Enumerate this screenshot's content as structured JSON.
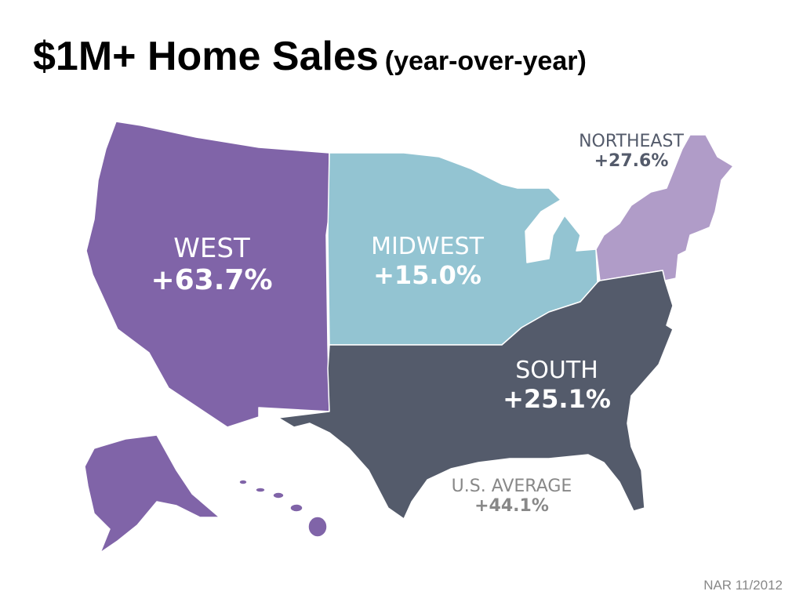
{
  "title": {
    "main": "$1M+ Home Sales",
    "sub": "(year-over-year)"
  },
  "regions": {
    "west": {
      "name": "WEST",
      "value": "+63.7%",
      "color": "#8064a8"
    },
    "midwest": {
      "name": "MIDWEST",
      "value": "+15.0%",
      "color": "#93c4d2"
    },
    "northeast": {
      "name": "NORTHEAST",
      "value": "+27.6%",
      "color": "#b09cc8"
    },
    "south": {
      "name": "SOUTH",
      "value": "+25.1%",
      "color": "#545b6b"
    }
  },
  "us_average": {
    "name": "U.S. AVERAGE",
    "value": "+44.1%"
  },
  "source": "NAR 11/2012"
}
